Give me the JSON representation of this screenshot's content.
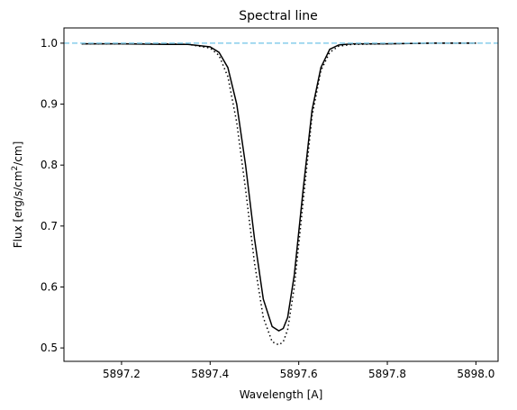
{
  "chart_data": {
    "type": "line",
    "title": "Spectral line",
    "xlabel": "Wavelength [A]",
    "ylabel_parts": {
      "before": "Flux [erg/s/cm",
      "superscript": "2",
      "after": "/cm]"
    },
    "xlim": [
      5897.07,
      5898.05
    ],
    "ylim": [
      0.478,
      1.025
    ],
    "xticks": [
      5897.2,
      5897.4,
      5897.6,
      5897.8,
      5898.0
    ],
    "xtick_labels": [
      "5897.2",
      "5897.4",
      "5897.6",
      "5897.8",
      "5898.0"
    ],
    "yticks": [
      0.5,
      0.6,
      0.7,
      0.8,
      0.9,
      1.0
    ],
    "ytick_labels": [
      "0.5",
      "0.6",
      "0.7",
      "0.8",
      "0.9",
      "1.0"
    ],
    "grid": false,
    "colors": {
      "solid": "#000000",
      "dotted": "#000000",
      "continuum": "#87ceeb"
    },
    "series": [
      {
        "style": "solid",
        "x": [
          5897.11,
          5897.2,
          5897.3,
          5897.35,
          5897.4,
          5897.42,
          5897.44,
          5897.46,
          5897.48,
          5897.5,
          5897.52,
          5897.54,
          5897.555,
          5897.565,
          5897.575,
          5897.59,
          5897.61,
          5897.63,
          5897.65,
          5897.67,
          5897.69,
          5897.72,
          5897.8,
          5897.9,
          5898.0
        ],
        "y": [
          0.999,
          0.999,
          0.998,
          0.998,
          0.994,
          0.985,
          0.96,
          0.9,
          0.8,
          0.68,
          0.58,
          0.535,
          0.528,
          0.532,
          0.55,
          0.62,
          0.76,
          0.89,
          0.96,
          0.99,
          0.997,
          0.999,
          0.999,
          1.0,
          1.0
        ]
      },
      {
        "style": "dotted",
        "x": [
          5897.11,
          5897.2,
          5897.3,
          5897.35,
          5897.4,
          5897.42,
          5897.44,
          5897.46,
          5897.48,
          5897.5,
          5897.52,
          5897.54,
          5897.555,
          5897.565,
          5897.575,
          5897.59,
          5897.61,
          5897.63,
          5897.65,
          5897.67,
          5897.69,
          5897.72,
          5897.8,
          5897.9,
          5898.0
        ],
        "y": [
          0.999,
          0.999,
          0.999,
          0.998,
          0.992,
          0.98,
          0.945,
          0.87,
          0.76,
          0.64,
          0.55,
          0.51,
          0.505,
          0.51,
          0.53,
          0.6,
          0.74,
          0.88,
          0.955,
          0.985,
          0.995,
          0.998,
          0.999,
          1.0,
          1.0
        ]
      }
    ],
    "reference_line": {
      "y": 1.0,
      "style": "dashed"
    }
  }
}
